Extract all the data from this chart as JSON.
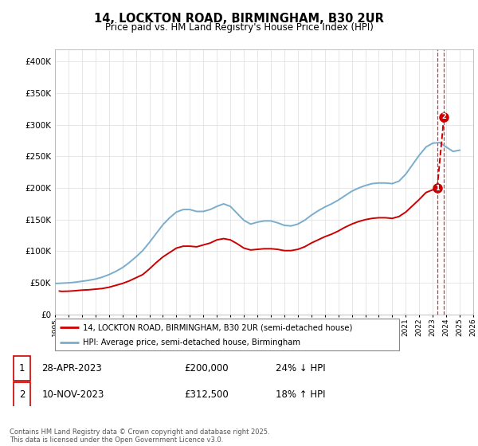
{
  "title": "14, LOCKTON ROAD, BIRMINGHAM, B30 2UR",
  "subtitle": "Price paid vs. HM Land Registry's House Price Index (HPI)",
  "ylim": [
    0,
    420000
  ],
  "yticks": [
    0,
    50000,
    100000,
    150000,
    200000,
    250000,
    300000,
    350000,
    400000
  ],
  "xlim": [
    1995,
    2026
  ],
  "red_line_color": "#cc0000",
  "blue_line_color": "#7aadcc",
  "legend1": "14, LOCKTON ROAD, BIRMINGHAM, B30 2UR (semi-detached house)",
  "legend2": "HPI: Average price, semi-detached house, Birmingham",
  "transaction1_date": "28-APR-2023",
  "transaction1_price": "£200,000",
  "transaction1_hpi": "24% ↓ HPI",
  "transaction2_date": "10-NOV-2023",
  "transaction2_price": "£312,500",
  "transaction2_hpi": "18% ↑ HPI",
  "footer": "Contains HM Land Registry data © Crown copyright and database right 2025.\nThis data is licensed under the Open Government Licence v3.0.",
  "red_x": [
    1995.33,
    1995.5,
    1996.0,
    1996.5,
    1997.0,
    1997.5,
    1998.0,
    1998.5,
    1999.0,
    1999.5,
    2000.0,
    2000.5,
    2001.0,
    2001.5,
    2002.0,
    2002.5,
    2003.0,
    2003.5,
    2004.0,
    2004.5,
    2005.0,
    2005.5,
    2006.0,
    2006.5,
    2007.0,
    2007.5,
    2008.0,
    2008.5,
    2009.0,
    2009.5,
    2010.0,
    2010.5,
    2011.0,
    2011.5,
    2012.0,
    2012.5,
    2013.0,
    2013.5,
    2014.0,
    2014.5,
    2015.0,
    2015.5,
    2016.0,
    2016.5,
    2017.0,
    2017.5,
    2018.0,
    2018.5,
    2019.0,
    2019.5,
    2020.0,
    2020.5,
    2021.0,
    2021.5,
    2022.0,
    2022.5,
    2023.33,
    2023.83
  ],
  "red_y": [
    37000,
    36500,
    36800,
    37500,
    38500,
    39000,
    40000,
    41000,
    43000,
    46000,
    49000,
    53000,
    58000,
    63000,
    72000,
    82000,
    91000,
    98000,
    105000,
    108000,
    108000,
    107000,
    110000,
    113000,
    118000,
    120000,
    118000,
    112000,
    105000,
    102000,
    103000,
    104000,
    104000,
    103000,
    101000,
    101000,
    103000,
    107000,
    113000,
    118000,
    123000,
    127000,
    132000,
    138000,
    143000,
    147000,
    150000,
    152000,
    153000,
    153000,
    152000,
    155000,
    162000,
    172000,
    182000,
    193000,
    200000,
    312500
  ],
  "blue_x": [
    1995.0,
    1995.5,
    1996.0,
    1996.5,
    1997.0,
    1997.5,
    1998.0,
    1998.5,
    1999.0,
    1999.5,
    2000.0,
    2000.5,
    2001.0,
    2001.5,
    2002.0,
    2002.5,
    2003.0,
    2003.5,
    2004.0,
    2004.5,
    2005.0,
    2005.5,
    2006.0,
    2006.5,
    2007.0,
    2007.5,
    2008.0,
    2008.5,
    2009.0,
    2009.5,
    2010.0,
    2010.5,
    2011.0,
    2011.5,
    2012.0,
    2012.5,
    2013.0,
    2013.5,
    2014.0,
    2014.5,
    2015.0,
    2015.5,
    2016.0,
    2016.5,
    2017.0,
    2017.5,
    2018.0,
    2018.5,
    2019.0,
    2019.5,
    2020.0,
    2020.5,
    2021.0,
    2021.5,
    2022.0,
    2022.5,
    2023.0,
    2023.5,
    2024.0,
    2024.5,
    2025.0
  ],
  "blue_y": [
    49000,
    49500,
    50000,
    51000,
    52500,
    54000,
    56000,
    59000,
    63000,
    68000,
    74000,
    82000,
    91000,
    101000,
    114000,
    128000,
    142000,
    153000,
    162000,
    166000,
    166000,
    163000,
    163000,
    166000,
    171000,
    175000,
    171000,
    160000,
    149000,
    143000,
    146000,
    148000,
    148000,
    145000,
    141000,
    140000,
    143000,
    149000,
    157000,
    164000,
    170000,
    175000,
    181000,
    188000,
    195000,
    200000,
    204000,
    207000,
    208000,
    208000,
    207000,
    211000,
    222000,
    237000,
    252000,
    265000,
    271000,
    272000,
    265000,
    258000,
    260000
  ]
}
